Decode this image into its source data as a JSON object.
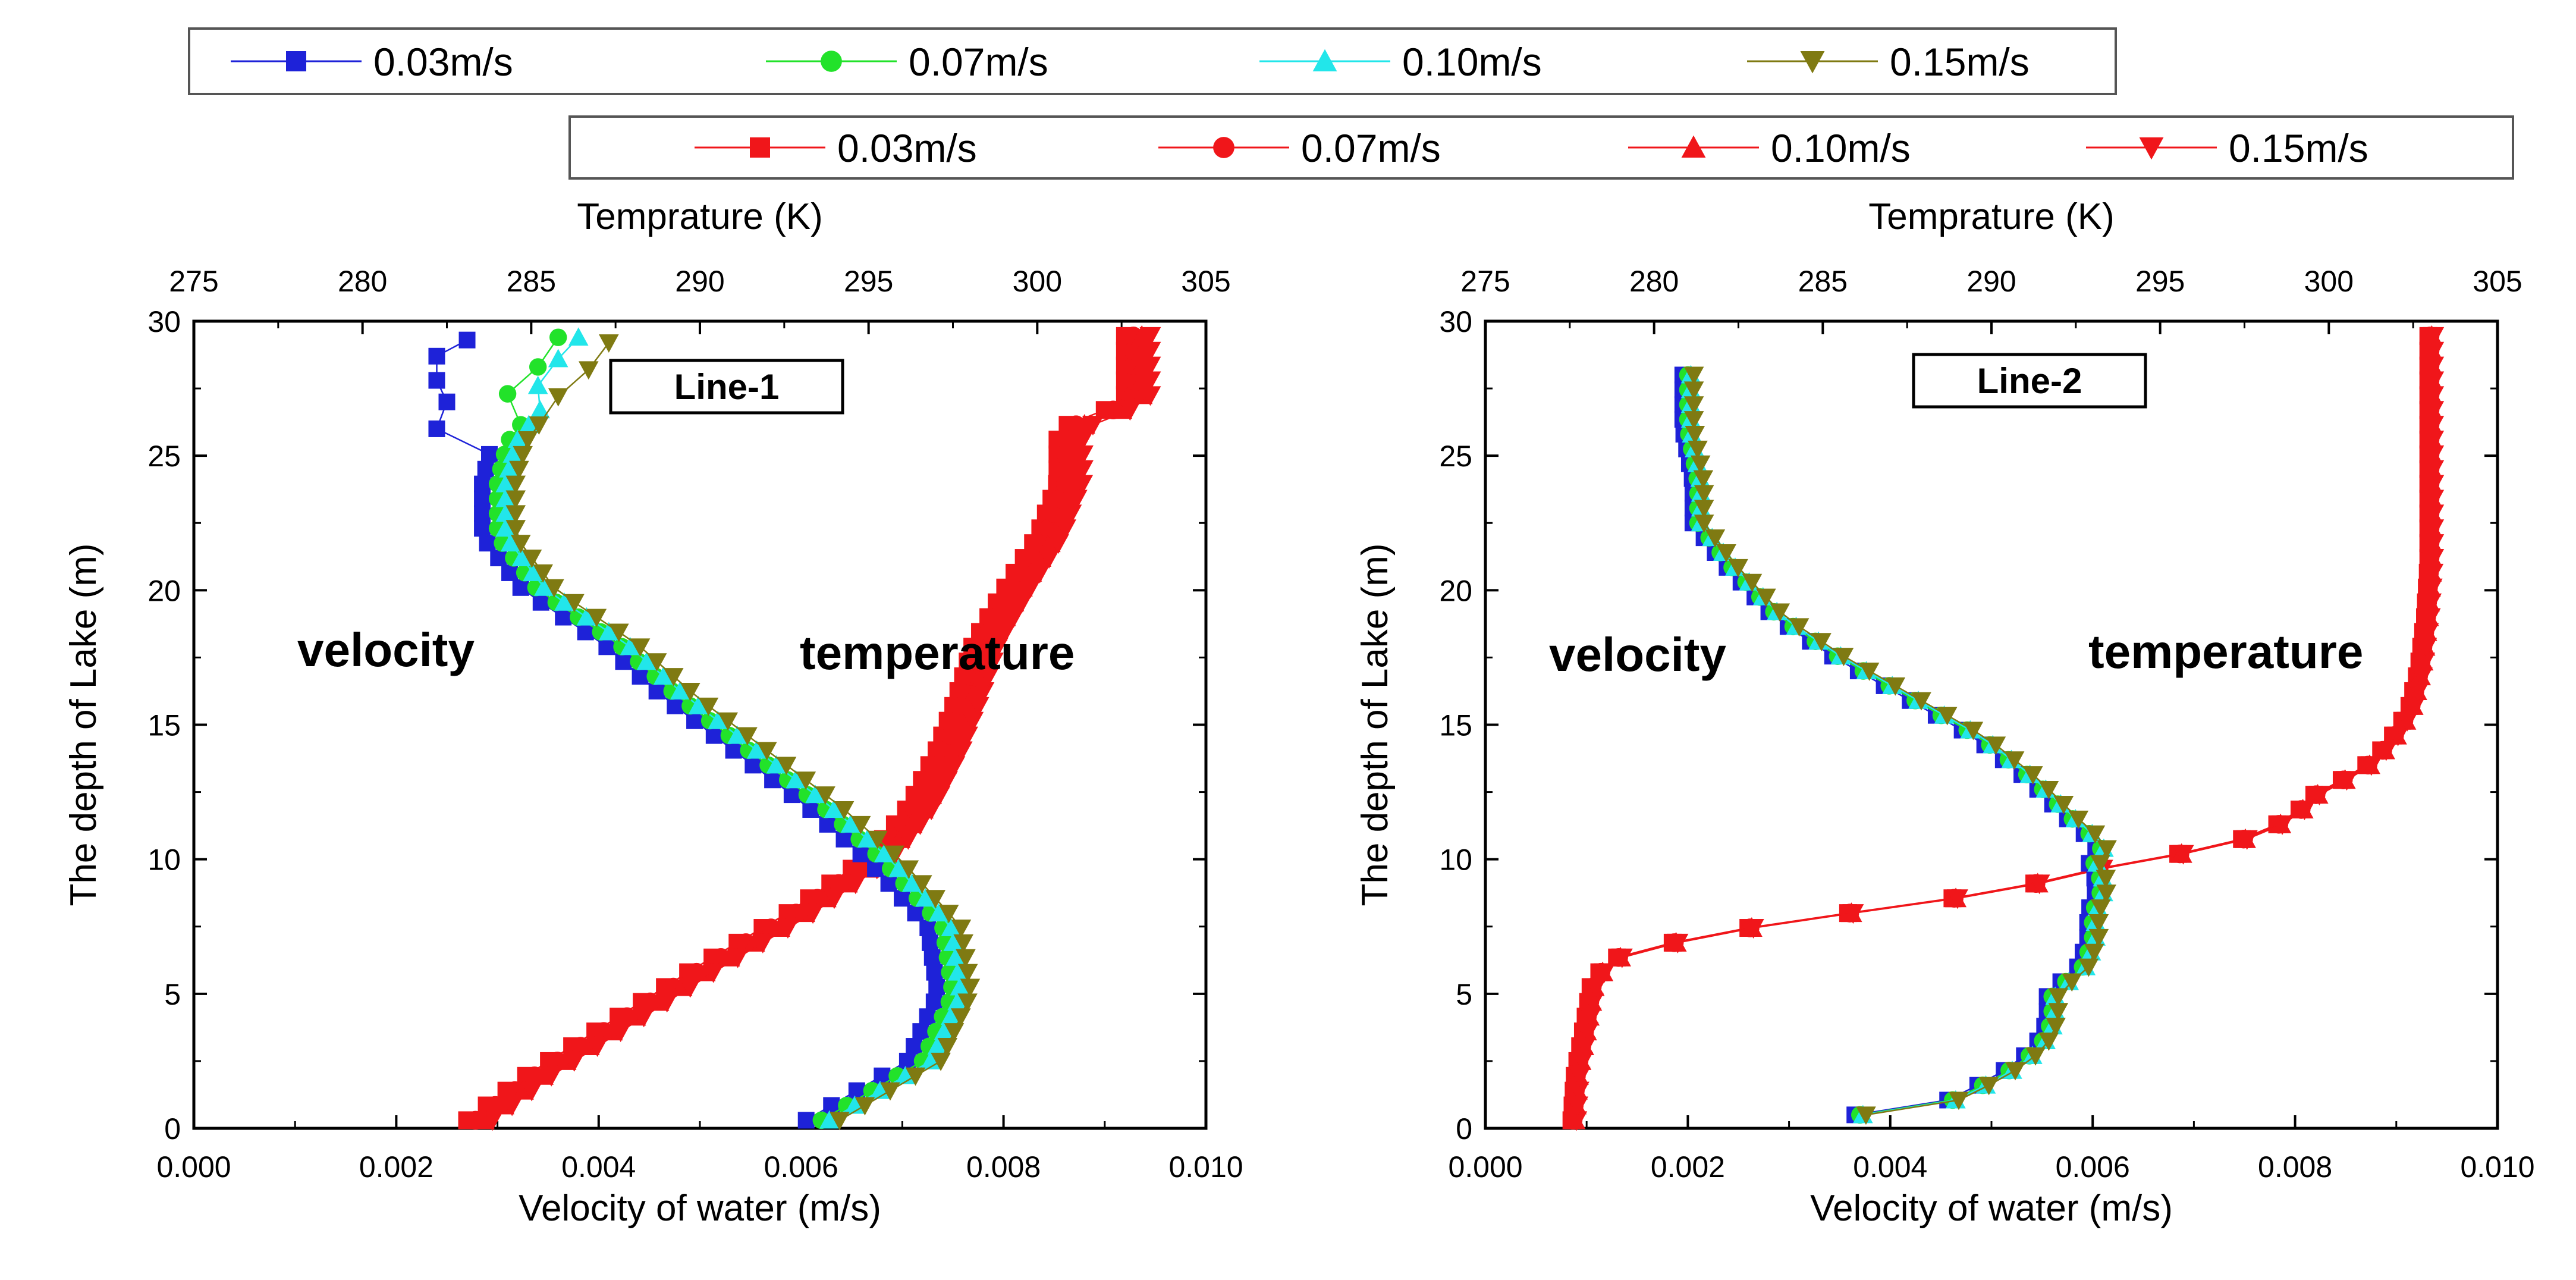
{
  "chart_data": {
    "type": "scatter",
    "legends": {
      "velocity": {
        "entries": [
          {
            "label": "0.03m/s",
            "color": "#1e22d8",
            "marker": "square"
          },
          {
            "label": "0.07m/s",
            "color": "#22e22a",
            "marker": "circle"
          },
          {
            "label": "0.10m/s",
            "color": "#22e6ea",
            "marker": "triangle-up"
          },
          {
            "label": "0.15m/s",
            "color": "#7f7a12",
            "marker": "triangle-down"
          }
        ]
      },
      "temperature": {
        "entries": [
          {
            "label": "0.03m/s",
            "color": "#f0161a",
            "marker": "square"
          },
          {
            "label": "0.07m/s",
            "color": "#f0161a",
            "marker": "circle"
          },
          {
            "label": "0.10m/s",
            "color": "#f0161a",
            "marker": "triangle-up"
          },
          {
            "label": "0.15m/s",
            "color": "#f0161a",
            "marker": "triangle-down"
          }
        ]
      }
    },
    "panels": [
      {
        "name": "Line-1",
        "line_label": "Line-1",
        "top_axis_label": "Temprature (K)",
        "bottom_axis_label": "Velocity of water (m/s)",
        "y_axis_label": "The depth of Lake (m)",
        "xlim_velocity": [
          0.0,
          0.01
        ],
        "xlim_temperature": [
          275,
          305
        ],
        "ylim": [
          0,
          30
        ],
        "x_ticks": [
          "0.000",
          "0.002",
          "0.004",
          "0.006",
          "0.008",
          "0.010"
        ],
        "top_ticks": [
          "275",
          "280",
          "285",
          "290",
          "295",
          "300",
          "305"
        ],
        "y_ticks": [
          "0",
          "5",
          "10",
          "15",
          "20",
          "25",
          "30"
        ],
        "annotations": {
          "velocity": "velocity",
          "temperature": "temperature"
        },
        "velocity_anchor": {
          "depth": [
            0.3,
            2.5,
            5,
            7.5,
            10,
            12,
            14,
            16,
            18,
            20,
            22,
            24,
            25.5,
            27,
            29
          ],
          "base": [
            0.0062,
            0.0072,
            0.0075,
            0.0074,
            0.0068,
            0.0062,
            0.0055,
            0.0048,
            0.0042,
            0.0034,
            0.003,
            0.003,
            0.0031,
            0.0034,
            0.0038
          ]
        },
        "velocity_series": [
          {
            "name": "0.03m/s",
            "offset": -0.00015,
            "top": [
              [
                26,
                0.0024
              ],
              [
                27,
                0.0025
              ],
              [
                27.8,
                0.0024
              ],
              [
                28.7,
                0.0024
              ],
              [
                29.3,
                0.0027
              ]
            ],
            "cut": 25.5
          },
          {
            "name": "0.07m/s",
            "offset": 0.0,
            "top": [
              [
                27.3,
                0.0031
              ],
              [
                28.3,
                0.0034
              ],
              [
                29.4,
                0.0036
              ]
            ],
            "cut": 26.5
          },
          {
            "name": "0.10m/s",
            "offset": 8e-05,
            "top": [
              [
                27.6,
                0.0034
              ],
              [
                28.6,
                0.0036
              ],
              [
                29.4,
                0.0038
              ]
            ],
            "cut": 26.8
          },
          {
            "name": "0.15m/s",
            "offset": 0.00018,
            "top": [
              [
                27.2,
                0.0036
              ],
              [
                28.2,
                0.0039
              ],
              [
                29.2,
                0.0041
              ]
            ],
            "cut": 26.6
          }
        ],
        "temperature_anchor": {
          "depth": [
            0.3,
            2,
            4,
            6,
            8,
            10,
            11,
            12,
            14,
            16,
            18,
            20,
            22,
            24,
            25,
            26,
            27,
            29.5
          ],
          "base": [
            283.5,
            285.3,
            287.8,
            290.3,
            293.0,
            295.3,
            296.0,
            296.6,
            297.4,
            298.0,
            298.5,
            299.4,
            300.4,
            301.0,
            301.0,
            301.0,
            303.0,
            303.0
          ]
        },
        "temperature_series": [
          {
            "name": "0.03m/s",
            "offset": -0.4
          },
          {
            "name": "0.07m/s",
            "offset": -0.15
          },
          {
            "name": "0.10m/s",
            "offset": 0.1
          },
          {
            "name": "0.15m/s",
            "offset": 0.35
          }
        ]
      },
      {
        "name": "Line-2",
        "line_label": "Line-2",
        "top_axis_label": "Temprature (K)",
        "bottom_axis_label": "Velocity of water (m/s)",
        "y_axis_label": "The depth of Lake (m)",
        "xlim_velocity": [
          0.0,
          0.01
        ],
        "xlim_temperature": [
          275,
          305
        ],
        "ylim": [
          0,
          30
        ],
        "x_ticks": [
          "0.000",
          "0.002",
          "0.004",
          "0.006",
          "0.008",
          "0.010"
        ],
        "top_ticks": [
          "275",
          "280",
          "285",
          "290",
          "295",
          "300",
          "305"
        ],
        "y_ticks": [
          "0",
          "5",
          "10",
          "15",
          "20",
          "25",
          "30"
        ],
        "annotations": {
          "velocity": "velocity",
          "temperature": "temperature"
        },
        "velocity_anchor": {
          "depth": [
            0.5,
            1.1,
            1.8,
            2.4,
            3.2,
            4,
            5,
            6,
            7,
            8,
            9,
            10,
            10.5,
            11.5,
            13,
            14.5,
            16,
            17.5,
            19,
            21,
            22.5,
            24,
            26,
            28.5
          ],
          "base": [
            0.0037,
            0.0047,
            0.005,
            0.0053,
            0.0055,
            0.0056,
            0.0056,
            0.0059,
            0.006,
            0.006,
            0.0061,
            0.006,
            0.0061,
            0.0058,
            0.0054,
            0.0049,
            0.0042,
            0.0035,
            0.0029,
            0.0024,
            0.0021,
            0.0021,
            0.002,
            0.002
          ]
        },
        "velocity_series": [
          {
            "name": "0.03m/s",
            "offset": -5e-05
          },
          {
            "name": "0.07m/s",
            "offset": 0.0
          },
          {
            "name": "0.10m/s",
            "offset": 3e-05
          },
          {
            "name": "0.15m/s",
            "offset": 6e-05
          }
        ],
        "temperature_anchor": {
          "depth": [
            0.3,
            2,
            4,
            5.5,
            6.3,
            7.2,
            8,
            8.8,
            9.8,
            10.5,
            11.5,
            12.5,
            13.3,
            14.3,
            15.5,
            17,
            19,
            21,
            24,
            27,
            29.5
          ],
          "base": [
            277.6,
            277.7,
            278.0,
            278.2,
            278.8,
            281.5,
            285.8,
            290.3,
            293.7,
            297.0,
            298.9,
            299.7,
            301.0,
            301.8,
            302.4,
            302.7,
            302.9,
            303.0,
            303.0,
            303.0,
            303.0
          ]
        },
        "temperature_series": [
          {
            "name": "0.03m/s",
            "offset": -0.05
          },
          {
            "name": "0.07m/s",
            "offset": 0.0
          },
          {
            "name": "0.10m/s",
            "offset": 0.05
          },
          {
            "name": "0.15m/s",
            "offset": 0.1
          }
        ]
      }
    ]
  }
}
